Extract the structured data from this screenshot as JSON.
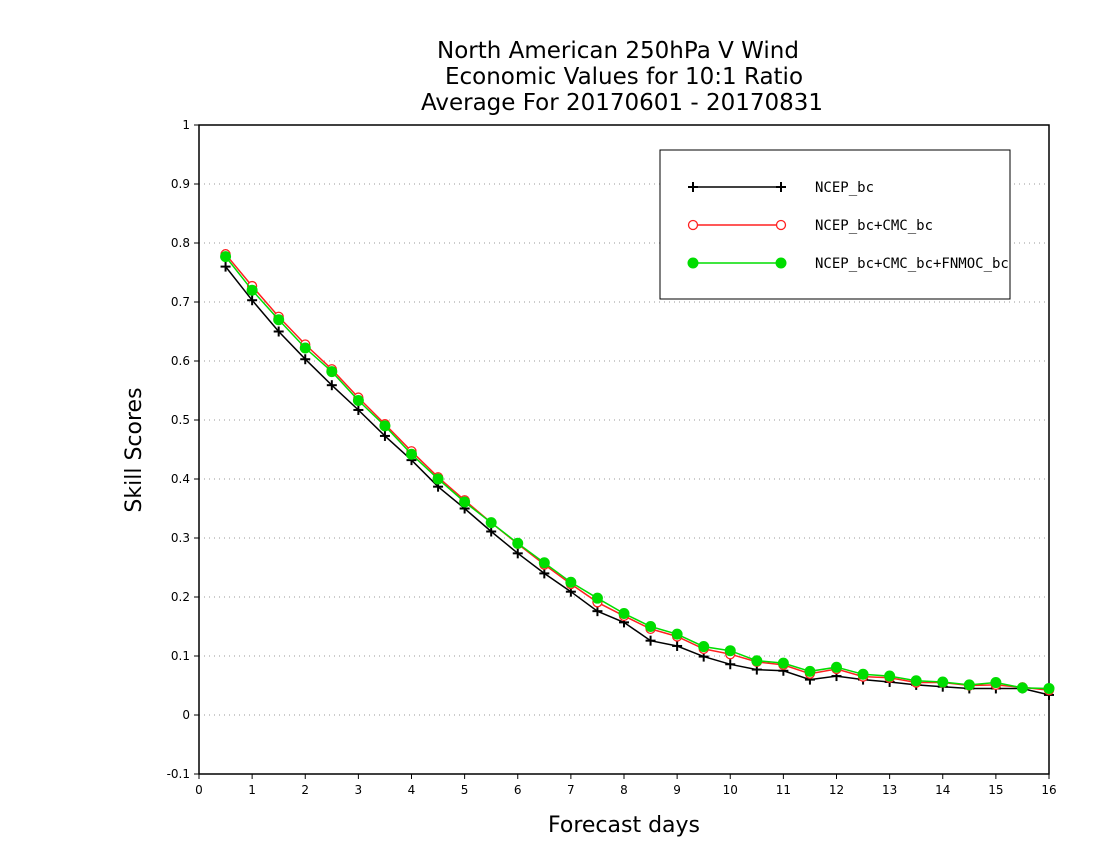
{
  "chart_data": {
    "type": "line",
    "title_lines": [
      "North American 250hPa V Wind",
      "Economic Values for 10:1 Ratio",
      "Average For 20170601 - 20170831"
    ],
    "xlabel": "Forecast days",
    "ylabel": "Skill Scores",
    "xlim": [
      0,
      16
    ],
    "ylim": [
      -0.1,
      1
    ],
    "xticks": [
      "0",
      "1",
      "2",
      "3",
      "4",
      "5",
      "6",
      "7",
      "8",
      "9",
      "10",
      "11",
      "12",
      "13",
      "14",
      "15",
      "16"
    ],
    "yticks": [
      "-0.1",
      "0",
      "0.1",
      "0.2",
      "0.3",
      "0.4",
      "0.5",
      "0.6",
      "0.7",
      "0.8",
      "0.9",
      "1"
    ],
    "grid": "horizontal dotted",
    "legend_position": "top-right",
    "x": [
      0.5,
      1,
      1.5,
      2,
      2.5,
      3,
      3.5,
      4,
      4.5,
      5,
      5.5,
      6,
      6.5,
      7,
      7.5,
      8,
      8.5,
      9,
      9.5,
      10,
      10.5,
      11,
      11.5,
      12,
      12.5,
      13,
      13.5,
      14,
      14.5,
      15,
      15.5,
      16
    ],
    "series": [
      {
        "name": "NCEP_bc",
        "color": "#000000",
        "marker": "plus",
        "values": [
          0.76,
          0.703,
          0.65,
          0.603,
          0.559,
          0.517,
          0.473,
          0.432,
          0.387,
          0.35,
          0.311,
          0.274,
          0.24,
          0.209,
          0.176,
          0.157,
          0.126,
          0.117,
          0.099,
          0.086,
          0.077,
          0.075,
          0.06,
          0.066,
          0.06,
          0.056,
          0.051,
          0.048,
          0.045,
          0.045,
          0.045,
          0.034
        ]
      },
      {
        "name": "NCEP_bc+CMC_bc",
        "color": "#ff2020",
        "marker": "open-circle",
        "values": [
          0.781,
          0.727,
          0.675,
          0.628,
          0.586,
          0.538,
          0.493,
          0.447,
          0.403,
          0.364,
          0.326,
          0.29,
          0.255,
          0.222,
          0.191,
          0.168,
          0.146,
          0.133,
          0.112,
          0.103,
          0.09,
          0.085,
          0.07,
          0.078,
          0.065,
          0.063,
          0.055,
          0.055,
          0.05,
          0.051,
          0.047,
          0.042
        ]
      },
      {
        "name": "NCEP_bc+CMC_bc+FNMOC_bc",
        "color": "#00dd00",
        "marker": "filled-circle",
        "values": [
          0.777,
          0.72,
          0.67,
          0.622,
          0.582,
          0.533,
          0.49,
          0.442,
          0.4,
          0.361,
          0.326,
          0.291,
          0.258,
          0.225,
          0.198,
          0.172,
          0.15,
          0.137,
          0.116,
          0.109,
          0.092,
          0.088,
          0.074,
          0.081,
          0.069,
          0.066,
          0.058,
          0.056,
          0.051,
          0.055,
          0.046,
          0.045
        ]
      }
    ]
  }
}
